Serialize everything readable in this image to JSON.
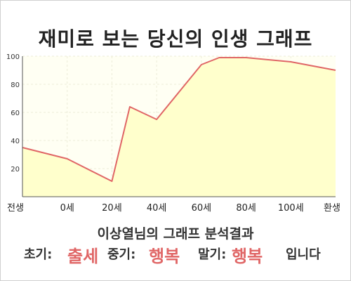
{
  "title": "재미로 보는 당신의 인생 그래프",
  "summary": "이상열님의 그래프 분석결과",
  "result": {
    "early_label": "초기:",
    "early_value": "출세",
    "mid_label": "중기:",
    "mid_value": "행복",
    "late_label": "말기:",
    "late_value": "행복",
    "suffix": "입니다"
  },
  "colors": {
    "line": "#e06666",
    "fill": "#ffffcc",
    "plot_bg": "#fffff3",
    "grid": "#ececd8",
    "accent": "#e06666"
  },
  "chart_data": {
    "type": "area",
    "title": "재미로 보는 당신의 인생 그래프",
    "xlabel": "",
    "ylabel": "",
    "ylim": [
      0,
      100
    ],
    "y_ticks": [
      "20",
      "40",
      "60",
      "80",
      "100"
    ],
    "x_tick_labels": [
      "전생",
      "0세",
      "20세",
      "40세",
      "60세",
      "80세",
      "100세",
      "환생"
    ],
    "x_positions": [
      0,
      1,
      2,
      3,
      4,
      5,
      6,
      7
    ],
    "grid": true,
    "series": [
      {
        "x": [
          0,
          1,
          2,
          2.4,
          3,
          4,
          4.4,
          5,
          6,
          7
        ],
        "y": [
          35,
          27,
          11,
          64,
          55,
          94,
          99,
          99,
          96,
          90
        ]
      }
    ]
  }
}
